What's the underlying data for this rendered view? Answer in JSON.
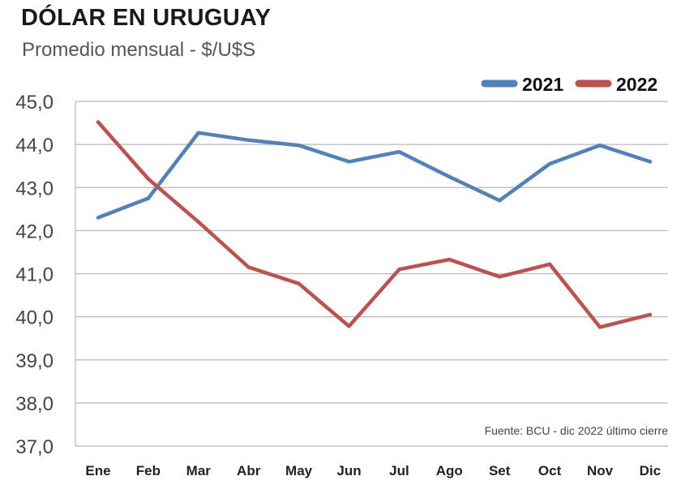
{
  "header": {
    "title": "DÓLAR EN URUGUAY",
    "subtitle": "Promedio mensual - $/U$S"
  },
  "source_note": "Fuente: BCU - dic 2022 último cierre",
  "colors": {
    "2021": "#4f81bd",
    "2022": "#c0504d",
    "grid": "#b8b8b8"
  },
  "chart_data": {
    "type": "line",
    "title": "DÓLAR EN URUGUAY",
    "subtitle": "Promedio mensual - $/U$S",
    "xlabel": "",
    "ylabel": "",
    "categories": [
      "Ene",
      "Feb",
      "Mar",
      "Abr",
      "May",
      "Jun",
      "Jul",
      "Ago",
      "Set",
      "Oct",
      "Nov",
      "Dic"
    ],
    "y_ticks": [
      "37,0",
      "38,0",
      "39,0",
      "40,0",
      "41,0",
      "42,0",
      "43,0",
      "44,0",
      "45,0"
    ],
    "ylim": [
      37,
      45
    ],
    "grid": true,
    "legend_position": "top-right",
    "series": [
      {
        "name": "2021",
        "color": "#4f81bd",
        "values": [
          42.3,
          42.75,
          44.27,
          44.1,
          43.98,
          43.6,
          43.83,
          43.25,
          42.7,
          43.55,
          43.98,
          43.6
        ]
      },
      {
        "name": "2022",
        "color": "#c0504d",
        "values": [
          44.52,
          43.2,
          42.2,
          41.15,
          40.77,
          39.78,
          41.1,
          41.33,
          40.93,
          41.22,
          39.76,
          40.05
        ]
      }
    ]
  }
}
